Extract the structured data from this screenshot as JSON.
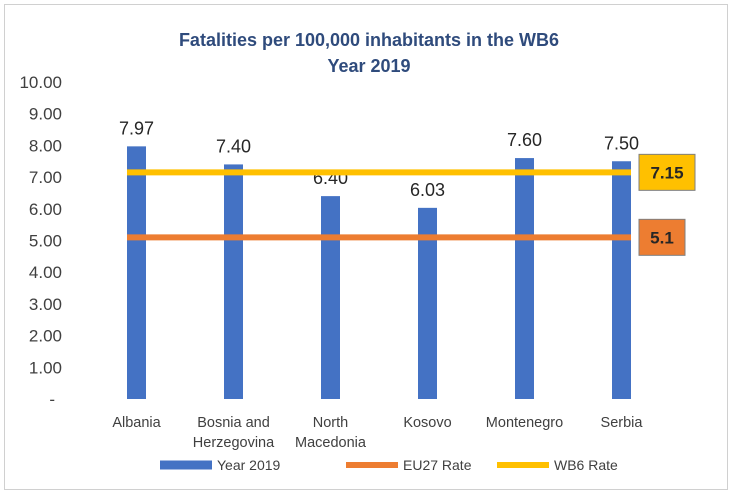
{
  "chart_data": {
    "type": "bar",
    "title": "Fatalities per 100,000 inhabitants in the WB6",
    "subtitle": "Year 2019",
    "categories": [
      [
        "Albania"
      ],
      [
        "Bosnia and",
        "Herzegovina"
      ],
      [
        "North",
        "Macedonia"
      ],
      [
        "Kosovo"
      ],
      [
        "Montenegro"
      ],
      [
        "Serbia"
      ]
    ],
    "series": [
      {
        "name": "Year 2019",
        "type": "bar",
        "color": "#4472c4",
        "values": [
          7.97,
          7.4,
          6.4,
          6.03,
          7.6,
          7.5
        ],
        "labels": [
          "7.97",
          "7.40",
          "6.40",
          "6.03",
          "7.60",
          "7.50"
        ]
      },
      {
        "name": "EU27 Rate",
        "type": "line",
        "color": "#ed7d31",
        "value": 5.1,
        "callout": "5.1"
      },
      {
        "name": "WB6 Rate",
        "type": "line",
        "color": "#ffc000",
        "value": 7.15,
        "callout": "7.15"
      }
    ],
    "ylim": [
      0,
      10
    ],
    "yticks": [
      "-",
      "1.00",
      "2.00",
      "3.00",
      "4.00",
      "5.00",
      "6.00",
      "7.00",
      "8.00",
      "9.00",
      "10.00"
    ],
    "grid": false,
    "legend": "bottom"
  }
}
